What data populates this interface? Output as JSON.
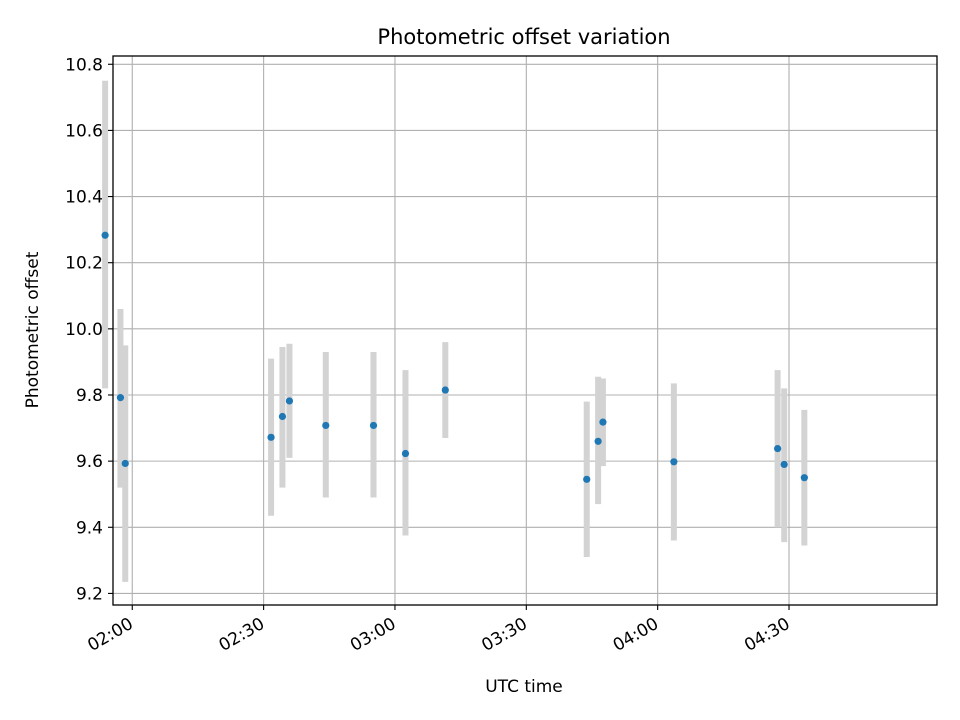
{
  "chart_data": {
    "type": "scatter",
    "title": "Photometric offset variation",
    "xlabel": "UTC time",
    "ylabel": "Photometric offset",
    "xlim_minutes": [
      115.6,
      303.8
    ],
    "ylim": [
      9.165,
      10.825
    ],
    "grid": true,
    "x_ticks": [
      {
        "minutes": 120,
        "label": "02:00"
      },
      {
        "minutes": 150,
        "label": "02:30"
      },
      {
        "minutes": 180,
        "label": "03:00"
      },
      {
        "minutes": 210,
        "label": "03:30"
      },
      {
        "minutes": 240,
        "label": "04:00"
      },
      {
        "minutes": 270,
        "label": "04:30"
      }
    ],
    "y_ticks": [
      {
        "value": 9.2,
        "label": "9.2"
      },
      {
        "value": 9.4,
        "label": "9.4"
      },
      {
        "value": 9.6,
        "label": "9.6"
      },
      {
        "value": 9.8,
        "label": "9.8"
      },
      {
        "value": 10.0,
        "label": "10.0"
      },
      {
        "value": 10.2,
        "label": "10.2"
      },
      {
        "value": 10.4,
        "label": "10.4"
      },
      {
        "value": 10.6,
        "label": "10.6"
      },
      {
        "value": 10.8,
        "label": "10.8"
      }
    ],
    "series": [
      {
        "name": "Photometric offset",
        "marker_color": "#1f77b4",
        "errorbar_color": "#d3d3d3",
        "points": [
          {
            "t": "01:53.8",
            "minutes": 113.8,
            "y": 10.283,
            "err_low": 9.82,
            "err_high": 10.75
          },
          {
            "t": "01:57.3",
            "minutes": 117.3,
            "y": 9.792,
            "err_low": 9.52,
            "err_high": 10.06
          },
          {
            "t": "01:58.4",
            "minutes": 118.4,
            "y": 9.593,
            "err_low": 9.235,
            "err_high": 9.95
          },
          {
            "t": "02:31.7",
            "minutes": 151.7,
            "y": 9.672,
            "err_low": 9.435,
            "err_high": 9.91
          },
          {
            "t": "02:34.3",
            "minutes": 154.3,
            "y": 9.735,
            "err_low": 9.52,
            "err_high": 9.945
          },
          {
            "t": "02:35.9",
            "minutes": 155.9,
            "y": 9.782,
            "err_low": 9.61,
            "err_high": 9.955
          },
          {
            "t": "02:44.2",
            "minutes": 164.2,
            "y": 9.708,
            "err_low": 9.49,
            "err_high": 9.93
          },
          {
            "t": "02:55.1",
            "minutes": 175.1,
            "y": 9.708,
            "err_low": 9.49,
            "err_high": 9.93
          },
          {
            "t": "03:02.4",
            "minutes": 182.4,
            "y": 9.623,
            "err_low": 9.375,
            "err_high": 9.875
          },
          {
            "t": "03:11.5",
            "minutes": 191.5,
            "y": 9.815,
            "err_low": 9.67,
            "err_high": 9.96
          },
          {
            "t": "03:43.8",
            "minutes": 223.8,
            "y": 9.545,
            "err_low": 9.31,
            "err_high": 9.78
          },
          {
            "t": "03:46.4",
            "minutes": 226.4,
            "y": 9.66,
            "err_low": 9.47,
            "err_high": 9.855
          },
          {
            "t": "03:47.5",
            "minutes": 227.5,
            "y": 9.718,
            "err_low": 9.585,
            "err_high": 9.85
          },
          {
            "t": "04:03.7",
            "minutes": 243.7,
            "y": 9.598,
            "err_low": 9.36,
            "err_high": 9.835
          },
          {
            "t": "04:27.4",
            "minutes": 267.4,
            "y": 9.638,
            "err_low": 9.4,
            "err_high": 9.875
          },
          {
            "t": "04:28.9",
            "minutes": 268.9,
            "y": 9.59,
            "err_low": 9.355,
            "err_high": 9.82
          },
          {
            "t": "04:33.5",
            "minutes": 273.5,
            "y": 9.55,
            "err_low": 9.345,
            "err_high": 9.755
          }
        ]
      }
    ]
  }
}
